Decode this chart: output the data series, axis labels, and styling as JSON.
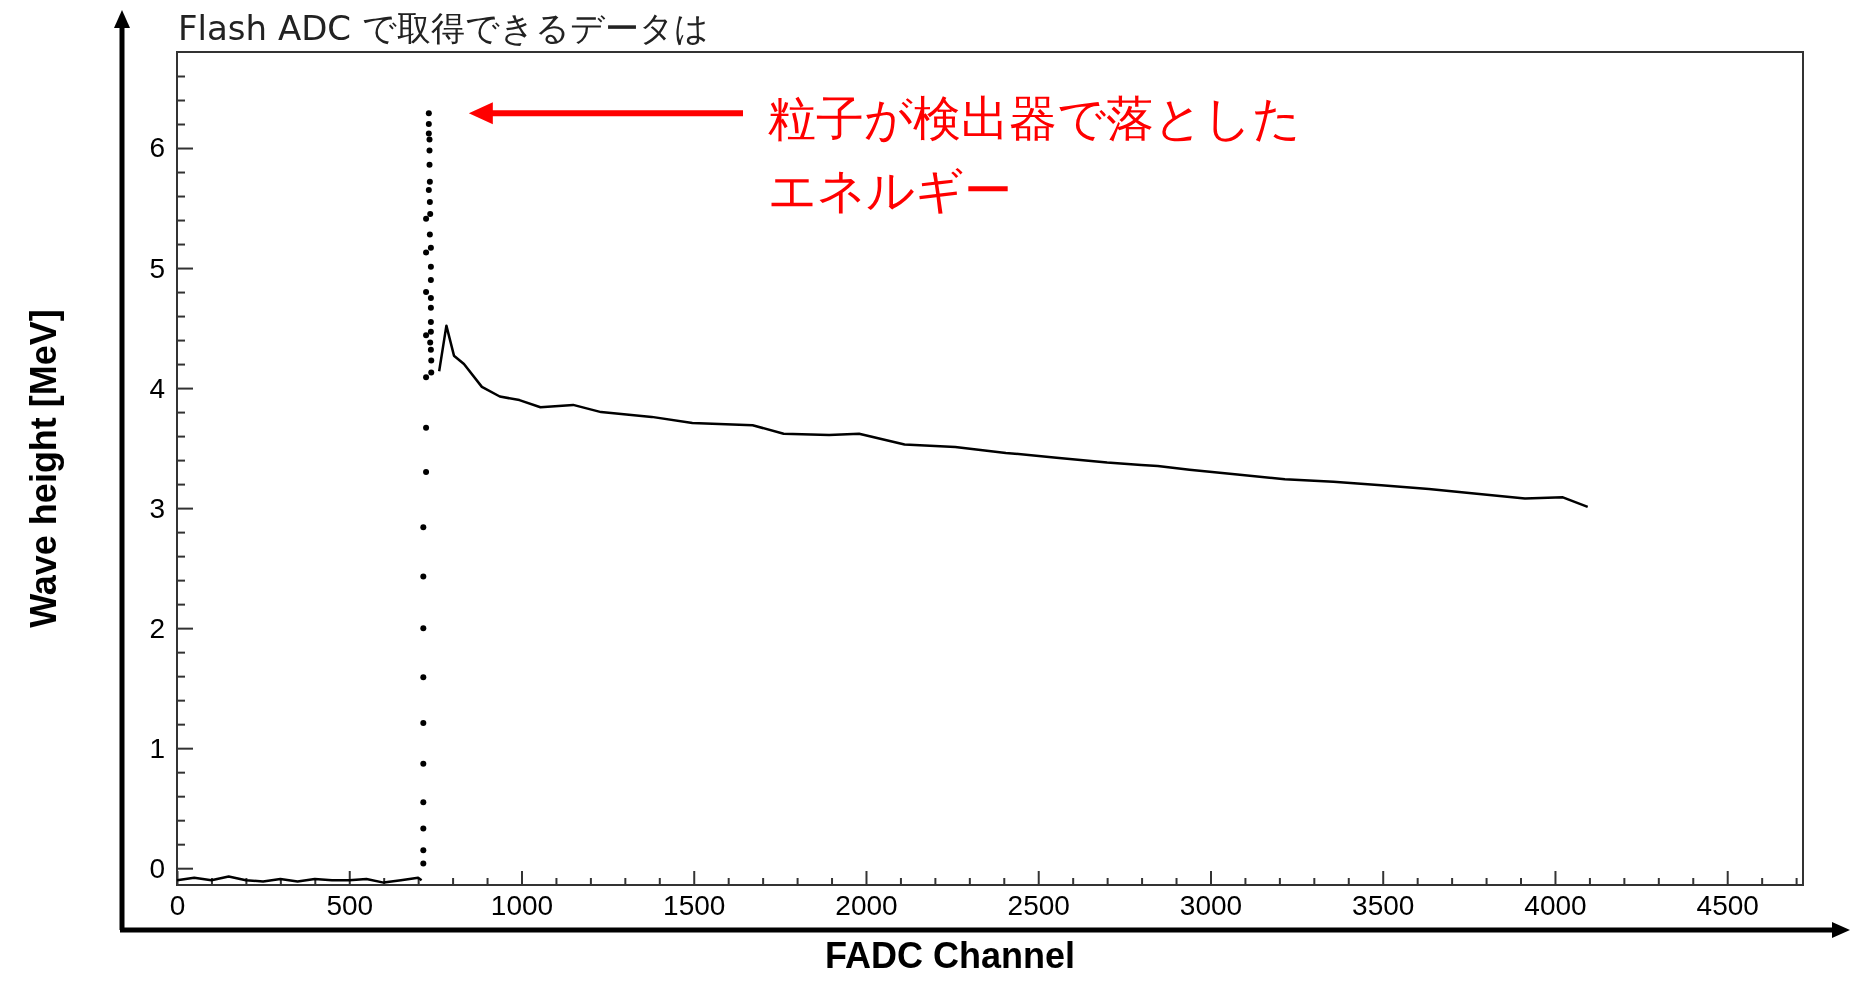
{
  "chart_data": {
    "type": "line",
    "title": "Flash ADC で取得できるデータは",
    "xlabel": "FADC Channel",
    "ylabel": "Wave height [MeV]",
    "annotations": [
      "粒子が検出器で落としたエネルギー"
    ],
    "xlim": [
      0,
      4720
    ],
    "ylim": [
      -0.14,
      6.8
    ],
    "xticks": [
      0,
      {
        "value": 100,
        "label": null
      },
      {
        "value": 200,
        "label": null
      },
      {
        "value": 300,
        "label": null
      },
      {
        "value": 400,
        "label": null
      },
      500,
      {
        "value": 600,
        "label": null
      },
      {
        "value": 700,
        "label": null
      },
      {
        "value": 800,
        "label": null
      },
      {
        "value": 900,
        "label": null
      },
      1000,
      {
        "value": 1100,
        "label": null
      },
      {
        "value": 1200,
        "label": null
      },
      {
        "value": 1300,
        "label": null
      },
      {
        "value": 1400,
        "label": null
      },
      1500,
      {
        "value": 1600,
        "label": null
      },
      {
        "value": 1700,
        "label": null
      },
      {
        "value": 1800,
        "label": null
      },
      {
        "value": 1900,
        "label": null
      },
      2000,
      {
        "value": 2100,
        "label": null
      },
      {
        "value": 2200,
        "label": null
      },
      {
        "value": 2300,
        "label": null
      },
      {
        "value": 2400,
        "label": null
      },
      2500,
      {
        "value": 2600,
        "label": null
      },
      {
        "value": 2700,
        "label": null
      },
      {
        "value": 2800,
        "label": null
      },
      {
        "value": 2900,
        "label": null
      },
      3000,
      {
        "value": 3100,
        "label": null
      },
      {
        "value": 3200,
        "label": null
      },
      {
        "value": 3300,
        "label": null
      },
      {
        "value": 3400,
        "label": null
      },
      3500,
      {
        "value": 3600,
        "label": null
      },
      {
        "value": 3700,
        "label": null
      },
      {
        "value": 3800,
        "label": null
      },
      {
        "value": 3900,
        "label": null
      },
      4000,
      {
        "value": 4100,
        "label": null
      },
      {
        "value": 4200,
        "label": null
      },
      {
        "value": 4300,
        "label": null
      },
      {
        "value": 4400,
        "label": null
      },
      4500,
      {
        "value": 4600,
        "label": null
      },
      {
        "value": 4700,
        "label": null
      }
    ],
    "yticks": [
      0,
      {
        "value": 0.2,
        "label": null
      },
      {
        "value": 0.4,
        "label": null
      },
      {
        "value": 0.6,
        "label": null
      },
      {
        "value": 0.8,
        "label": null
      },
      1,
      {
        "value": 1.2,
        "label": null
      },
      {
        "value": 1.4,
        "label": null
      },
      {
        "value": 1.6,
        "label": null
      },
      {
        "value": 1.8,
        "label": null
      },
      2,
      {
        "value": 2.2,
        "label": null
      },
      {
        "value": 2.4,
        "label": null
      },
      {
        "value": 2.6,
        "label": null
      },
      {
        "value": 2.8,
        "label": null
      },
      3,
      {
        "value": 3.2,
        "label": null
      },
      {
        "value": 3.4,
        "label": null
      },
      {
        "value": 3.6,
        "label": null
      },
      {
        "value": 3.8,
        "label": null
      },
      4,
      {
        "value": 4.2,
        "label": null
      },
      {
        "value": 4.4,
        "label": null
      },
      {
        "value": 4.6,
        "label": null
      },
      {
        "value": 4.8,
        "label": null
      },
      5,
      {
        "value": 5.2,
        "label": null
      },
      {
        "value": 5.4,
        "label": null
      },
      {
        "value": 5.6,
        "label": null
      },
      {
        "value": 5.8,
        "label": null
      },
      6,
      {
        "value": 6.2,
        "label": null
      },
      {
        "value": 6.4,
        "label": null
      },
      {
        "value": 6.6,
        "label": null
      }
    ],
    "grid": false,
    "series": [
      {
        "color": "#000000",
        "x": [
          0,
          50,
          100,
          150,
          200,
          250,
          300,
          350,
          400,
          450,
          500,
          550,
          600,
          650,
          700,
          710,
          740,
          761,
          782,
          804,
          833,
          885,
          937,
          994,
          1055,
          1150,
          1231,
          1378,
          1496,
          1671,
          1761,
          1893,
          1980,
          2112,
          2259,
          2406,
          2553,
          2700,
          2799,
          2847,
          2939,
          3078,
          3216,
          3357,
          3496,
          3634,
          3773,
          3913,
          4023,
          4095
        ],
        "values": [
          -0.1,
          -0.08,
          -0.1,
          -0.07,
          -0.1,
          -0.11,
          -0.09,
          -0.11,
          -0.09,
          -0.1,
          -0.1,
          -0.09,
          -0.12,
          -0.1,
          -0.08,
          -0.1,
          null,
          4.14,
          4.52,
          4.27,
          4.2,
          4.01,
          3.93,
          3.9,
          3.84,
          3.86,
          3.8,
          3.76,
          3.71,
          3.69,
          3.62,
          3.61,
          3.62,
          3.53,
          3.51,
          3.46,
          3.42,
          3.38,
          3.36,
          3.35,
          3.32,
          3.28,
          3.24,
          3.22,
          3.19,
          3.16,
          3.12,
          3.08,
          3.09,
          3.01
        ]
      },
      {
        "type": "scatter",
        "color": "#000000",
        "marker": "circle",
        "x": [
          715,
          715,
          715,
          715,
          715,
          715,
          715,
          715,
          715,
          715,
          723,
          723,
          723,
          723,
          723,
          723,
          723,
          731,
          731,
          731,
          733,
          733,
          733,
          734,
          731,
          734,
          735,
          734,
          737,
          737,
          737,
          737,
          737,
          737,
          737,
          735,
          737,
          738,
          738
        ],
        "values": [
          0.04,
          0.15,
          0.33,
          0.55,
          0.87,
          1.21,
          1.59,
          2.0,
          2.43,
          2.84,
          3.3,
          3.67,
          4.09,
          4.44,
          4.8,
          5.13,
          5.41,
          6.29,
          6.2,
          6.12,
          6.07,
          5.98,
          5.86,
          5.72,
          5.65,
          5.55,
          5.45,
          5.28,
          5.17,
          5.01,
          4.9,
          4.75,
          4.67,
          4.55,
          4.47,
          4.38,
          4.32,
          4.23,
          4.13
        ]
      }
    ]
  }
}
